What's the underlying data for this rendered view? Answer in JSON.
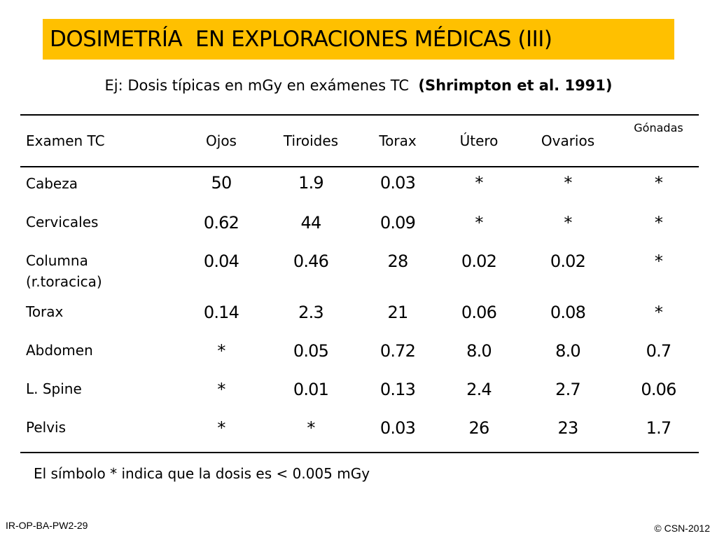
{
  "title": "DOSIMETRÍA  EN EXPLORACIONES MÉDICAS (III)",
  "subtitle": {
    "text": "Ej: Dosis típicas en mGy en exámenes TC  ",
    "reference": "(Shrimpton et al. 1991)"
  },
  "table": {
    "headers": [
      "Examen TC",
      "Ojos",
      "Tiroides",
      "Torax",
      "Útero",
      "Ovarios",
      "Gónadas"
    ],
    "rows": [
      {
        "exam": "Cabeza",
        "values": [
          "50",
          "1.9",
          "0.03",
          "*",
          "*",
          "*"
        ]
      },
      {
        "exam": "Cervicales",
        "values": [
          "0.62",
          "44",
          "0.09",
          "*",
          "*",
          "*"
        ]
      },
      {
        "exam": "Columna\n(r.toracica)",
        "values": [
          "0.04",
          "0.46",
          "28",
          "0.02",
          "0.02",
          "*"
        ]
      },
      {
        "exam": "Torax",
        "values": [
          "0.14",
          "2.3",
          "21",
          "0.06",
          "0.08",
          "*"
        ]
      },
      {
        "exam": "Abdomen",
        "values": [
          "*",
          "0.05",
          "0.72",
          "8.0",
          "8.0",
          "0.7"
        ]
      },
      {
        "exam": "L. Spine",
        "values": [
          "*",
          "0.01",
          "0.13",
          "2.4",
          "2.7",
          "0.06"
        ]
      },
      {
        "exam": "Pelvis",
        "values": [
          "*",
          "*",
          "0.03",
          "26",
          "23",
          "1.7"
        ]
      }
    ]
  },
  "note": "El símbolo * indica que la dosis es < 0.005 mGy",
  "footer": {
    "code": "IR-OP-BA-PW2-29",
    "copyright": "© CSN-2012"
  },
  "colors": {
    "title_background": "#ffc000"
  }
}
